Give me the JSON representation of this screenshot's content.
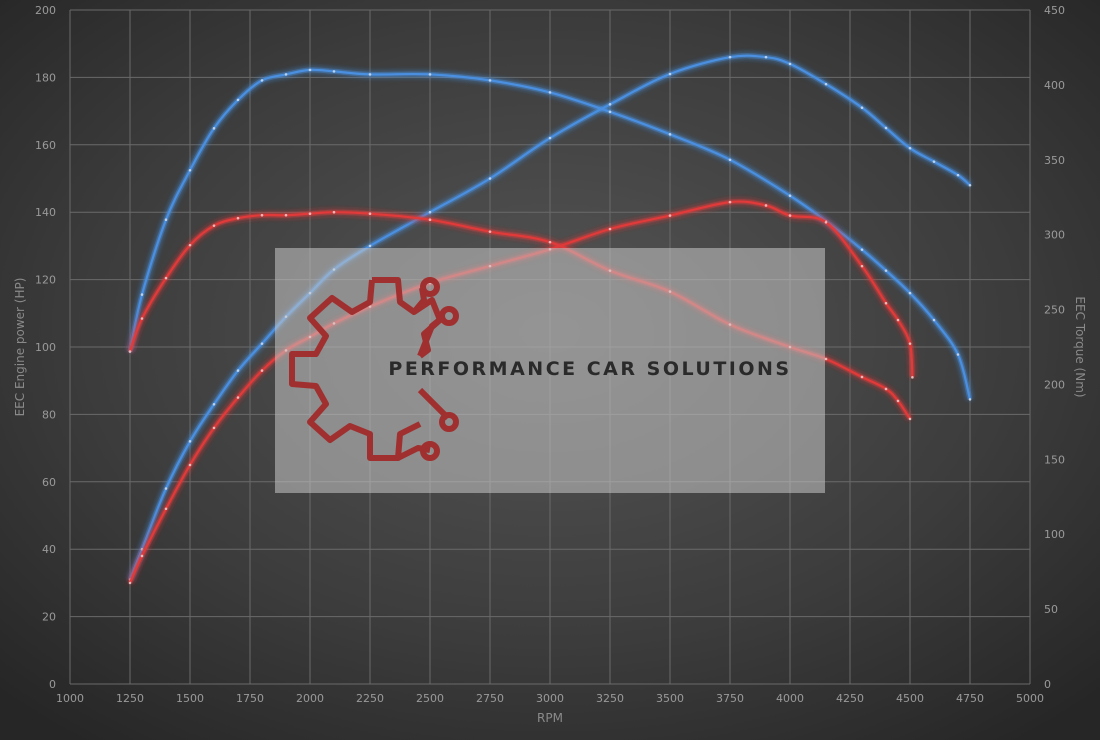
{
  "chart_data": {
    "type": "line",
    "title": "",
    "xlabel": "RPM",
    "ylabel_left": "EEC Engine power (HP)",
    "ylabel_right": "EEC Torque (Nm)",
    "xlim": [
      1000,
      5000
    ],
    "ylim_left": [
      0,
      200
    ],
    "ylim_right": [
      0,
      450
    ],
    "x_ticks": [
      "1000",
      "1250",
      "1500",
      "1750",
      "2000",
      "2250",
      "2500",
      "2750",
      "3000",
      "3250",
      "3500",
      "3750",
      "4000",
      "4250",
      "4500",
      "4750",
      "5000"
    ],
    "y_left_ticks": [
      "0",
      "20",
      "40",
      "60",
      "80",
      "100",
      "120",
      "140",
      "160",
      "180",
      "200"
    ],
    "y_right_ticks": [
      "0",
      "50",
      "100",
      "150",
      "200",
      "250",
      "300",
      "350",
      "400",
      "450"
    ],
    "grid": true,
    "series": [
      {
        "name": "",
        "axis": "left",
        "color": "#4a8fe0",
        "x": [
          1250,
          1300,
          1400,
          1500,
          1600,
          1700,
          1800,
          1900,
          2000,
          2100,
          2250,
          2500,
          2750,
          3000,
          3250,
          3500,
          3750,
          3900,
          4000,
          4150,
          4300,
          4400,
          4500,
          4600,
          4700,
          4750
        ],
        "y": [
          31,
          40,
          58,
          72,
          83,
          93,
          101,
          109,
          116,
          123,
          130,
          140,
          150,
          162,
          172,
          181,
          186,
          186,
          184,
          178,
          171,
          165,
          159,
          155,
          151,
          148
        ]
      },
      {
        "name": "",
        "axis": "right",
        "color": "#4a8fe0",
        "x": [
          1250,
          1300,
          1400,
          1500,
          1600,
          1700,
          1800,
          1900,
          2000,
          2100,
          2250,
          2500,
          2750,
          3000,
          3250,
          3500,
          3750,
          4000,
          4150,
          4300,
          4400,
          4500,
          4600,
          4700,
          4750
        ],
        "y": [
          222,
          260,
          310,
          343,
          371,
          390,
          403,
          407,
          410,
          409,
          407,
          407,
          403,
          395,
          382,
          367,
          350,
          326,
          309,
          290,
          276,
          261,
          243,
          220,
          190
        ]
      },
      {
        "name": "",
        "axis": "left",
        "color": "#e03a3a",
        "x": [
          1250,
          1300,
          1400,
          1500,
          1600,
          1700,
          1800,
          1900,
          2000,
          2100,
          2250,
          2500,
          2750,
          3000,
          3250,
          3500,
          3750,
          3900,
          4000,
          4150,
          4300,
          4400,
          4450,
          4500,
          4510
        ],
        "y": [
          30,
          38,
          52,
          65,
          76,
          85,
          93,
          99,
          103,
          107,
          112,
          119,
          124,
          129,
          135,
          139,
          143,
          142,
          139,
          137,
          124,
          113,
          108,
          101,
          91
        ]
      },
      {
        "name": "",
        "axis": "right",
        "color": "#e03a3a",
        "x": [
          1250,
          1300,
          1400,
          1500,
          1600,
          1700,
          1800,
          1900,
          2000,
          2100,
          2250,
          2500,
          2750,
          3000,
          3250,
          3500,
          3750,
          4000,
          4150,
          4300,
          4400,
          4450,
          4500
        ],
        "y": [
          222,
          244,
          271,
          293,
          306,
          311,
          313,
          313,
          314,
          315,
          314,
          310,
          302,
          295,
          276,
          262,
          240,
          225,
          217,
          205,
          197,
          189,
          177
        ]
      }
    ]
  },
  "watermark": {
    "text": "PERFORMANCE CAR SOLUTIONS",
    "logo_color": "#a03030"
  }
}
